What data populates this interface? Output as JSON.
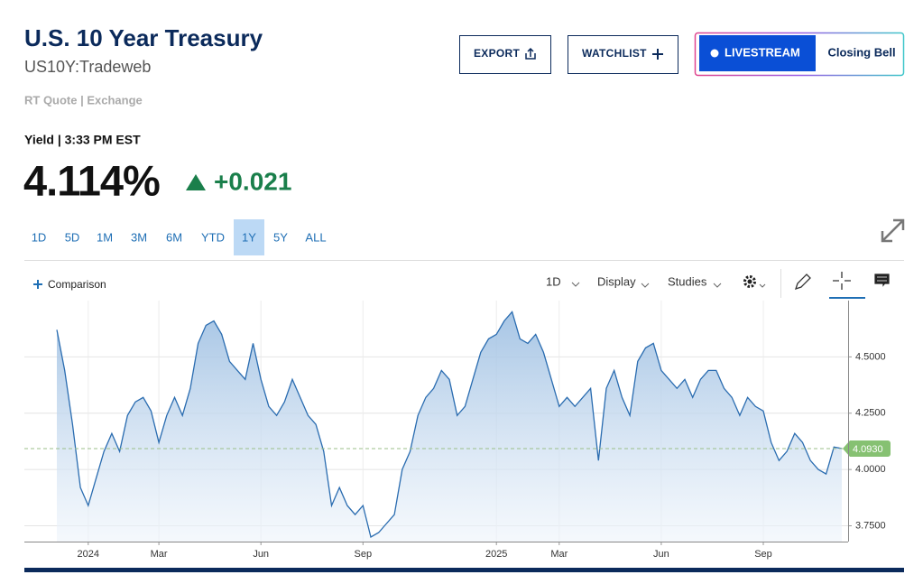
{
  "header": {
    "title": "U.S. 10 Year Treasury",
    "symbol": "US10Y:Tradeweb",
    "quote_source": "RT Quote | Exchange"
  },
  "actions": {
    "export": "EXPORT",
    "watchlist": "WATCHLIST",
    "livestream": "LIVESTREAM",
    "closing_bell": "Closing Bell"
  },
  "quote": {
    "label": "Yield | 3:33 PM EST",
    "price": "4.114%",
    "change": "+0.021"
  },
  "ranges": {
    "items": [
      "1D",
      "5D",
      "1M",
      "3M",
      "6M",
      "YTD",
      "1Y",
      "5Y",
      "ALL"
    ],
    "selected": "1Y"
  },
  "toolbar": {
    "comparison": "Comparison",
    "interval": "1D",
    "display": "Display",
    "studies": "Studies"
  },
  "chart_data": {
    "type": "area",
    "color": "#2a6cb0",
    "categories": [
      null,
      null,
      null,
      null,
      "2024",
      null,
      null,
      null,
      null,
      null,
      null,
      null,
      null,
      "Mar",
      null,
      null,
      null,
      null,
      null,
      null,
      null,
      null,
      null,
      null,
      null,
      null,
      "Jun",
      null,
      null,
      null,
      null,
      null,
      null,
      null,
      null,
      null,
      null,
      null,
      null,
      "Sep",
      null,
      null,
      null,
      null,
      null,
      null,
      null,
      null,
      null,
      null,
      null,
      null,
      null,
      null,
      null,
      null,
      "2025",
      null,
      null,
      null,
      null,
      null,
      null,
      null,
      "Mar",
      null,
      null,
      null,
      null,
      null,
      null,
      null,
      null,
      null,
      null,
      null,
      null,
      "Jun",
      null,
      null,
      null,
      null,
      null,
      null,
      null,
      null,
      null,
      null,
      null,
      null,
      "Sep",
      null,
      null,
      null,
      null,
      null,
      null,
      null,
      null,
      null,
      null
    ],
    "values": [
      4.62,
      4.44,
      4.2,
      3.92,
      3.84,
      3.96,
      4.08,
      4.16,
      4.08,
      4.24,
      4.3,
      4.32,
      4.26,
      4.12,
      4.24,
      4.32,
      4.24,
      4.36,
      4.56,
      4.64,
      4.66,
      4.6,
      4.48,
      4.44,
      4.4,
      4.56,
      4.4,
      4.28,
      4.24,
      4.3,
      4.4,
      4.32,
      4.24,
      4.2,
      4.08,
      3.84,
      3.92,
      3.84,
      3.8,
      3.84,
      3.7,
      3.72,
      3.76,
      3.8,
      4.0,
      4.08,
      4.24,
      4.32,
      4.36,
      4.44,
      4.4,
      4.24,
      4.28,
      4.4,
      4.52,
      4.58,
      4.6,
      4.66,
      4.7,
      4.58,
      4.56,
      4.6,
      4.52,
      4.4,
      4.28,
      4.32,
      4.28,
      4.32,
      4.36,
      4.04,
      4.36,
      4.44,
      4.32,
      4.24,
      4.48,
      4.54,
      4.56,
      4.44,
      4.4,
      4.36,
      4.4,
      4.32,
      4.4,
      4.44,
      4.44,
      4.36,
      4.32,
      4.24,
      4.32,
      4.28,
      4.26,
      4.12,
      4.04,
      4.08,
      4.16,
      4.12,
      4.04,
      4.0,
      3.98,
      4.1,
      4.093
    ],
    "ylim": [
      3.68,
      4.75
    ],
    "yticks": [
      {
        "value": 3.75,
        "label": "3.7500"
      },
      {
        "value": 4.0,
        "label": "4.0000"
      },
      {
        "value": 4.25,
        "label": "4.2500"
      },
      {
        "value": 4.5,
        "label": "4.5000"
      }
    ],
    "reference_line": {
      "value": 4.093,
      "label": "4.0930"
    },
    "grid": true
  }
}
